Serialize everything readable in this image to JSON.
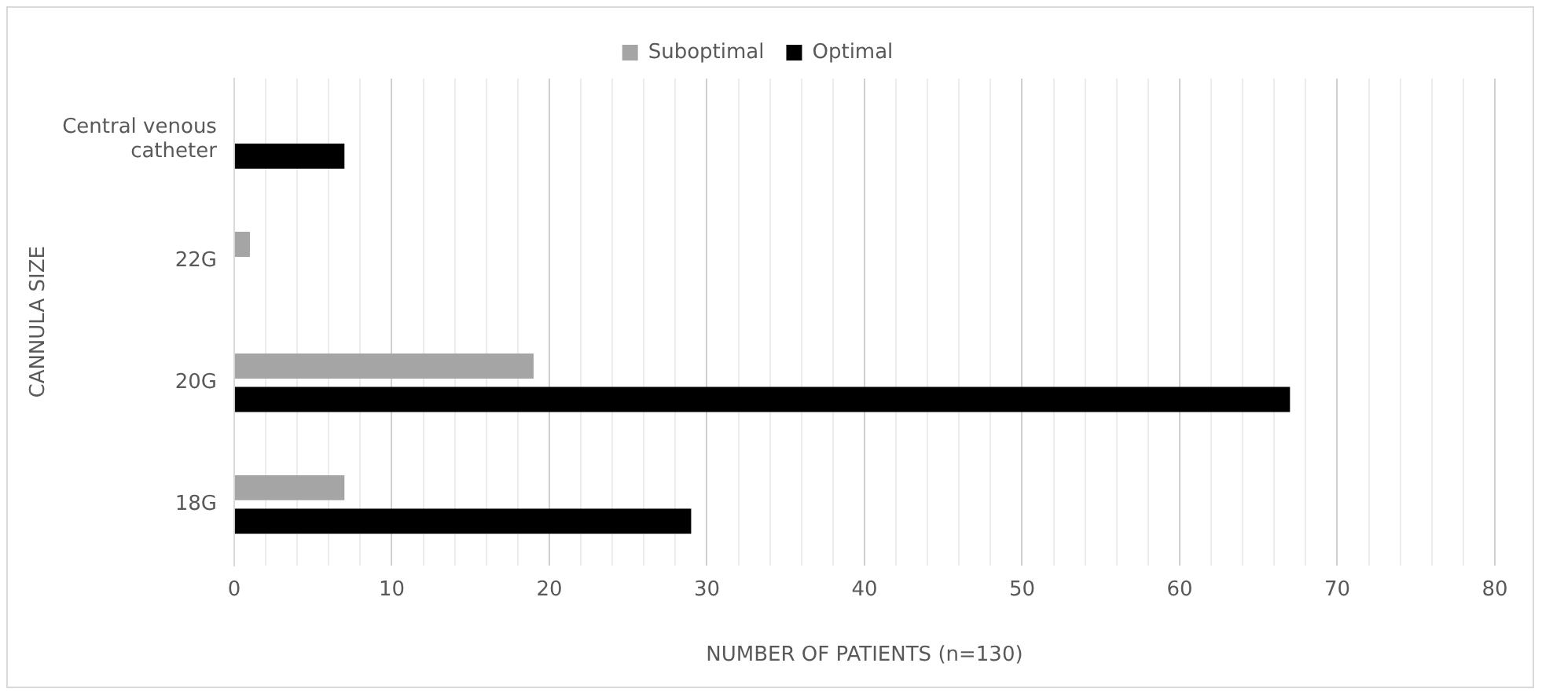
{
  "chart_data": {
    "type": "bar",
    "orientation": "horizontal",
    "xlabel": "NUMBER OF PATIENTS (n=130)",
    "ylabel": "CANNULA SIZE",
    "categories": [
      "Central venous catheter",
      "22G",
      "20G",
      "18G"
    ],
    "series": [
      {
        "name": "Suboptimal",
        "color": "#a5a5a5",
        "values": [
          0,
          1,
          19,
          7
        ]
      },
      {
        "name": "Optimal",
        "color": "#000000",
        "values": [
          7,
          0,
          67,
          29
        ]
      }
    ],
    "xlim": [
      0,
      80
    ],
    "xticks": [
      0,
      {
        "value": 2,
        "label": null
      },
      {
        "value": 4,
        "label": null
      },
      {
        "value": 6,
        "label": null
      },
      {
        "value": 8,
        "label": null
      },
      10,
      {
        "value": 12,
        "label": null
      },
      {
        "value": 14,
        "label": null
      },
      {
        "value": 16,
        "label": null
      },
      {
        "value": 18,
        "label": null
      },
      20,
      {
        "value": 22,
        "label": null
      },
      {
        "value": 24,
        "label": null
      },
      {
        "value": 26,
        "label": null
      },
      {
        "value": 28,
        "label": null
      },
      30,
      {
        "value": 32,
        "label": null
      },
      {
        "value": 34,
        "label": null
      },
      {
        "value": 36,
        "label": null
      },
      {
        "value": 38,
        "label": null
      },
      40,
      {
        "value": 42,
        "label": null
      },
      {
        "value": 44,
        "label": null
      },
      {
        "value": 46,
        "label": null
      },
      {
        "value": 48,
        "label": null
      },
      50,
      {
        "value": 52,
        "label": null
      },
      {
        "value": 54,
        "label": null
      },
      {
        "value": 56,
        "label": null
      },
      {
        "value": 58,
        "label": null
      },
      60,
      {
        "value": 62,
        "label": null
      },
      {
        "value": 64,
        "label": null
      },
      {
        "value": 66,
        "label": null
      },
      {
        "value": 68,
        "label": null
      },
      70,
      {
        "value": 72,
        "label": null
      },
      {
        "value": 74,
        "label": null
      },
      {
        "value": 76,
        "label": null
      },
      {
        "value": 78,
        "label": null
      },
      80
    ],
    "grid": "x",
    "legend": "top"
  }
}
